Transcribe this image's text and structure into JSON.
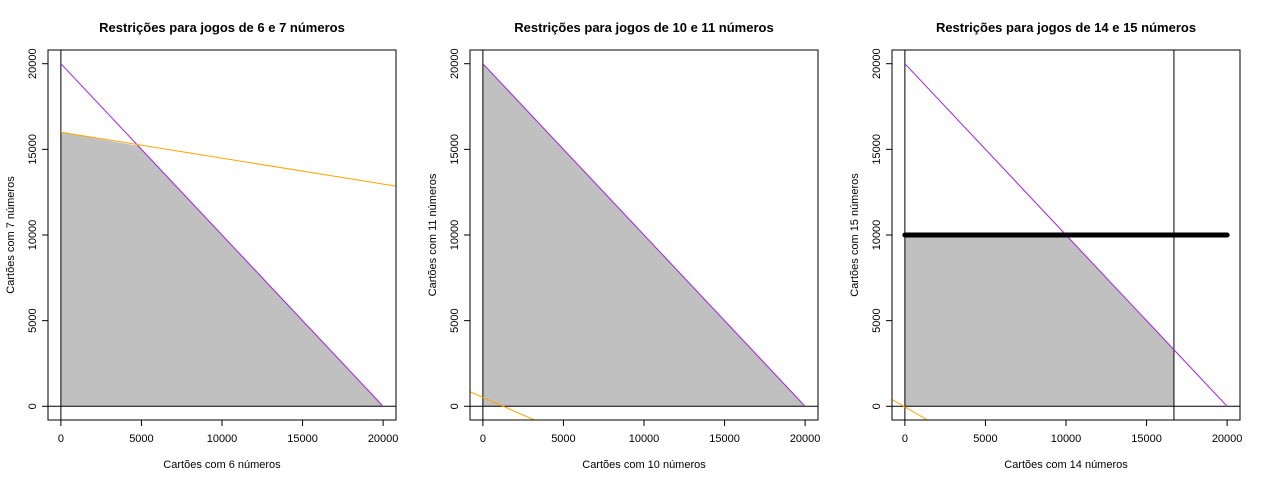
{
  "colors": {
    "feasible_region": "#c0c0c0",
    "purple_line": "#a020f0",
    "orange_line": "#ffa500",
    "axis_lines": "#000000"
  },
  "chart_data": [
    {
      "type": "area",
      "title": "Restrições para jogos de 6 e 7 números",
      "xlabel": "Cartões com 6 números",
      "ylabel": "Cartões com 7 números",
      "xlim": [
        -800,
        20800
      ],
      "ylim": [
        -800,
        20800
      ],
      "xticks": [
        0,
        5000,
        10000,
        15000,
        20000
      ],
      "yticks": [
        0,
        5000,
        10000,
        15000,
        20000
      ],
      "grid": false,
      "feasible_region": [
        [
          0,
          0
        ],
        [
          0,
          16000
        ],
        [
          4800,
          15200
        ],
        [
          20000,
          0
        ]
      ],
      "lines": [
        {
          "color": "purple",
          "points": [
            [
              0,
              20000
            ],
            [
              20000,
              0
            ]
          ],
          "width": 1
        },
        {
          "color": "orange",
          "points": [
            [
              0,
              16000
            ],
            [
              20800,
              12850
            ]
          ],
          "width": 1
        }
      ],
      "reference_lines": {
        "x": [
          0
        ],
        "y": [
          0
        ]
      }
    },
    {
      "type": "area",
      "title": "Restrições para jogos de 10 e 11 números",
      "xlabel": "Cartões com 10 números",
      "ylabel": "Cartões com 11 números",
      "xlim": [
        -800,
        20800
      ],
      "ylim": [
        -800,
        20800
      ],
      "xticks": [
        0,
        5000,
        10000,
        15000,
        20000
      ],
      "yticks": [
        0,
        5000,
        10000,
        15000,
        20000
      ],
      "grid": false,
      "feasible_region": [
        [
          0,
          0
        ],
        [
          0,
          20000
        ],
        [
          20000,
          0
        ]
      ],
      "lines": [
        {
          "color": "purple",
          "points": [
            [
              0,
              20000
            ],
            [
              20000,
              0
            ]
          ],
          "width": 1
        },
        {
          "color": "orange",
          "points": [
            [
              -800,
              850
            ],
            [
              3200,
              -800
            ]
          ],
          "width": 1
        }
      ],
      "reference_lines": {
        "x": [
          0
        ],
        "y": [
          0
        ]
      }
    },
    {
      "type": "area",
      "title": "Restrições para jogos de 14 e 15 números",
      "xlabel": "Cartões com 14 números",
      "ylabel": "Cartões com 15 números",
      "xlim": [
        -800,
        20800
      ],
      "ylim": [
        -800,
        20800
      ],
      "xticks": [
        0,
        5000,
        10000,
        15000,
        20000
      ],
      "yticks": [
        0,
        5000,
        10000,
        15000,
        20000
      ],
      "grid": false,
      "feasible_region": [
        [
          0,
          0
        ],
        [
          0,
          10000
        ],
        [
          10000,
          10000
        ],
        [
          16700,
          3300
        ],
        [
          16700,
          0
        ]
      ],
      "lines": [
        {
          "color": "purple",
          "points": [
            [
              0,
              20000
            ],
            [
              20000,
              0
            ]
          ],
          "width": 1
        },
        {
          "color": "orange",
          "points": [
            [
              -800,
              400
            ],
            [
              1400,
              -800
            ]
          ],
          "width": 1
        },
        {
          "color": "black",
          "points": [
            [
              0,
              10000
            ],
            [
              20000,
              10000
            ]
          ],
          "width": 5
        }
      ],
      "reference_lines": {
        "x": [
          0,
          16700
        ],
        "y": [
          0
        ]
      }
    }
  ]
}
